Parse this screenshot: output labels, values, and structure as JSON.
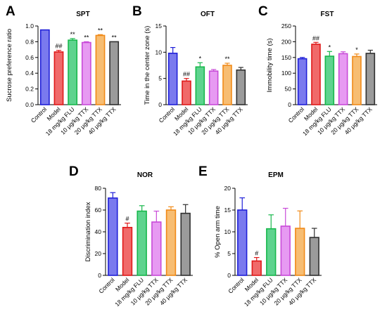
{
  "chart_data": [
    {
      "type": "bar",
      "panel": "A",
      "title": "SPT",
      "ylabel": "Sucrose preference ratio",
      "xlabel": "",
      "ylim": [
        0,
        1.0
      ],
      "yticks": [
        0.0,
        0.2,
        0.4,
        0.6,
        0.8,
        1.0
      ],
      "ytick_labels": [
        "0.0",
        "0.2",
        "0.4",
        "0.6",
        "0.8",
        "1.0"
      ],
      "categories": [
        "Control",
        "Model",
        "18 mg/kg FLU",
        "10 μg/kg TTX",
        "20 μg/kg TTX",
        "40 μg/kg TTX"
      ],
      "values": [
        0.95,
        0.67,
        0.82,
        0.79,
        0.88,
        0.8
      ],
      "errors": [
        0.0,
        0.02,
        0.02,
        0.01,
        0.01,
        0.0
      ],
      "significance": [
        "",
        "##",
        "**",
        "**",
        "**",
        "**"
      ]
    },
    {
      "type": "bar",
      "panel": "B",
      "title": "OFT",
      "ylabel": "Time in the center zone (s)",
      "xlabel": "",
      "ylim": [
        0,
        15
      ],
      "yticks": [
        0,
        5,
        10,
        15
      ],
      "ytick_labels": [
        "0",
        "5",
        "10",
        "15"
      ],
      "categories": [
        "Control",
        "Model",
        "18 mg/kg FLU",
        "10 μg/kg TTX",
        "20 μg/kg TTX",
        "40 μg/kg TTX"
      ],
      "values": [
        9.8,
        4.5,
        7.2,
        6.4,
        7.5,
        6.6
      ],
      "errors": [
        1.1,
        0.5,
        0.8,
        0.3,
        0.4,
        0.5
      ],
      "significance": [
        "",
        "##",
        "*",
        "",
        "**",
        ""
      ]
    },
    {
      "type": "bar",
      "panel": "C",
      "title": "FST",
      "ylabel": "Immobility time (s)",
      "xlabel": "",
      "ylim": [
        0,
        250
      ],
      "yticks": [
        0,
        50,
        100,
        150,
        200,
        250
      ],
      "ytick_labels": [
        "0",
        "50",
        "100",
        "150",
        "200",
        "250"
      ],
      "categories": [
        "Control",
        "Model",
        "18 mg/kg FLU",
        "10 μg/kg TTX",
        "20 μg/kg TTX",
        "40 μg/kg TTX"
      ],
      "values": [
        146,
        192,
        154,
        162,
        153,
        163
      ],
      "errors": [
        4,
        6,
        15,
        6,
        8,
        10
      ],
      "significance": [
        "",
        "##",
        "*",
        "",
        "*",
        ""
      ]
    },
    {
      "type": "bar",
      "panel": "D",
      "title": "NOR",
      "ylabel": "Discrimination index",
      "xlabel": "",
      "ylim": [
        0,
        80
      ],
      "yticks": [
        0,
        20,
        40,
        60,
        80
      ],
      "ytick_labels": [
        "0",
        "20",
        "40",
        "60",
        "80"
      ],
      "categories": [
        "Control",
        "Model",
        "18 mg/kg FLU",
        "10 μg/kg TTX",
        "20 μg/kg TTX",
        "40 μg/kg TTX"
      ],
      "values": [
        71,
        44,
        59,
        49,
        60,
        57
      ],
      "errors": [
        5,
        4,
        5,
        10,
        3,
        8
      ],
      "significance": [
        "",
        "#",
        "",
        "",
        "",
        ""
      ]
    },
    {
      "type": "bar",
      "panel": "E",
      "title": "EPM",
      "ylabel": "% Open arm time",
      "xlabel": "",
      "ylim": [
        0,
        20
      ],
      "yticks": [
        0,
        5,
        10,
        15,
        20
      ],
      "ytick_labels": [
        "0",
        "5",
        "10",
        "15",
        "20"
      ],
      "categories": [
        "Control",
        "Model",
        "18 mg/kg FLU",
        "10 μg/kg TTX",
        "20 μg/kg TTX",
        "40 μg/kg TTX"
      ],
      "values": [
        15,
        3.3,
        10.7,
        11.3,
        10.8,
        8.7
      ],
      "errors": [
        2.8,
        0.8,
        3.2,
        4.1,
        4.0,
        2.1
      ],
      "significance": [
        "",
        "#",
        "",
        "",
        "",
        ""
      ]
    }
  ],
  "colors": {
    "fills": [
      "#7a7aee",
      "#f06a6a",
      "#5ed38e",
      "#e79af2",
      "#f7bd72",
      "#9b9b9b"
    ],
    "strokes": [
      "#2020d8",
      "#e01a1a",
      "#18b84c",
      "#c84ad8",
      "#f08a18",
      "#303030"
    ]
  }
}
